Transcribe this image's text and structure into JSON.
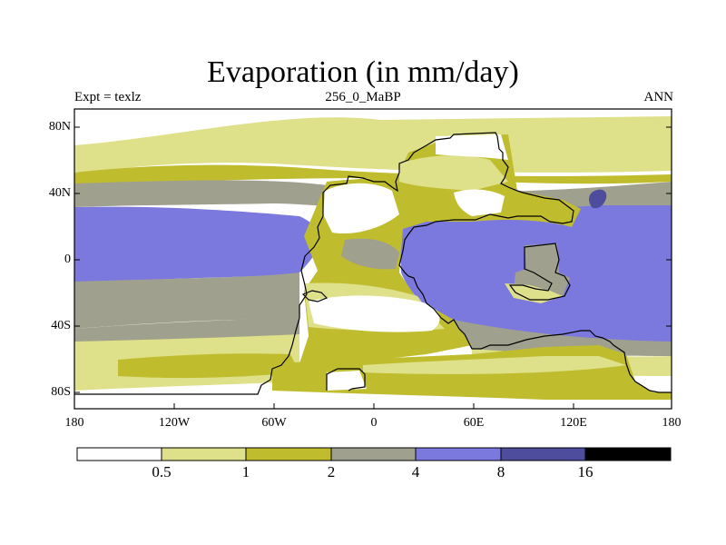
{
  "title": "Evaporation (in mm/day)",
  "subtitle_left": "Expt = texlz",
  "subtitle_center": "256_0_MaBP",
  "subtitle_right": "ANN",
  "lat_labels": [
    "80N",
    "40N",
    "0",
    "40S",
    "80S"
  ],
  "lon_labels": [
    "180",
    "120W",
    "60W",
    "0",
    "60E",
    "120E",
    "180"
  ],
  "colorbar": {
    "labels": [
      "0.5",
      "1",
      "2",
      "4",
      "8",
      "16"
    ],
    "colors": [
      "#ffffff",
      "#dfe08a",
      "#bfbd2e",
      "#a0a08e",
      "#7b78de",
      "#4e4c9c",
      "#000000"
    ]
  },
  "colors": {
    "white": "#ffffff",
    "light_yellow": "#dfe08a",
    "olive": "#bfbd2e",
    "gray": "#a0a08e",
    "blue": "#7b78de",
    "dark_blue": "#4e4c9c",
    "coast": "#000000"
  }
}
